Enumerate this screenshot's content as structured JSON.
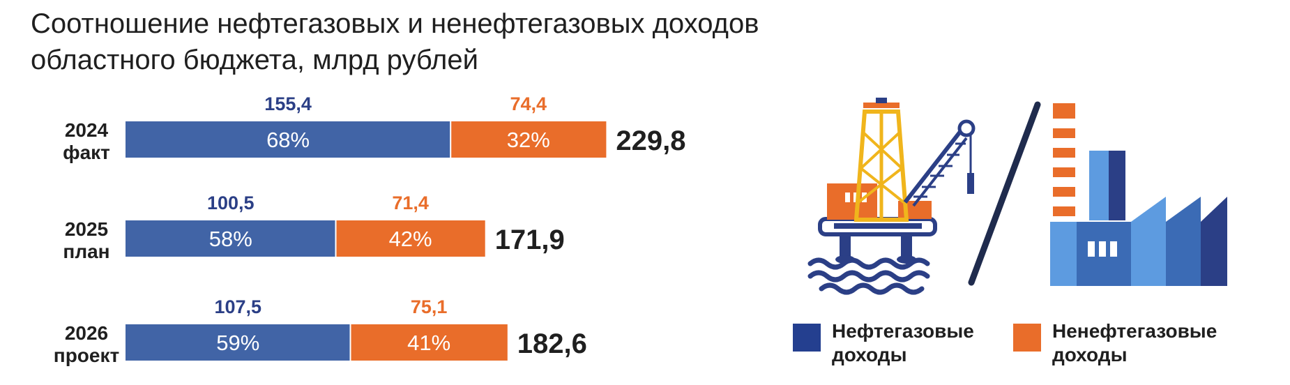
{
  "title_line1": "Соотношение нефтегазовых и ненефтегазовых доходов",
  "title_line2": "областного бюджета, млрд рублей",
  "colors": {
    "oil_bar": "#4164a6",
    "nonoil_bar": "#e96d2a",
    "oil_value": "#2b3f86",
    "nonoil_value": "#e96d2a",
    "legend_oil": "#243f8f",
    "legend_nonoil": "#e96d2a",
    "text": "#1f1f1f"
  },
  "chart_data": {
    "type": "bar",
    "orientation": "horizontal",
    "stacked": true,
    "categories": [
      {
        "line1": "2024",
        "line2": "факт"
      },
      {
        "line1": "2025",
        "line2": "план"
      },
      {
        "line1": "2026",
        "line2": "проект"
      }
    ],
    "series": [
      {
        "name": "Нефтегазовые доходы",
        "values": [
          155.4,
          100.5,
          107.5
        ],
        "value_labels": [
          "155,4",
          "100,5",
          "107,5"
        ],
        "share_labels": [
          "68%",
          "58%",
          "59%"
        ]
      },
      {
        "name": "Ненефтегазовые доходы",
        "values": [
          74.4,
          71.4,
          75.1
        ],
        "value_labels": [
          "74,4",
          "71,4",
          "75,1"
        ],
        "share_labels": [
          "32%",
          "42%",
          "41%"
        ]
      }
    ],
    "totals": [
      229.8,
      171.9,
      182.6
    ],
    "total_labels": [
      "229,8",
      "171,9",
      "182,6"
    ]
  },
  "legend": {
    "oil_line1": "Нефтегазовые",
    "oil_line2": "доходы",
    "nonoil_line1": "Ненефтегазовые",
    "nonoil_line2": "доходы"
  },
  "illustration": {
    "left_icon": "offshore-oil-rig-icon",
    "right_icon": "factory-icon"
  }
}
